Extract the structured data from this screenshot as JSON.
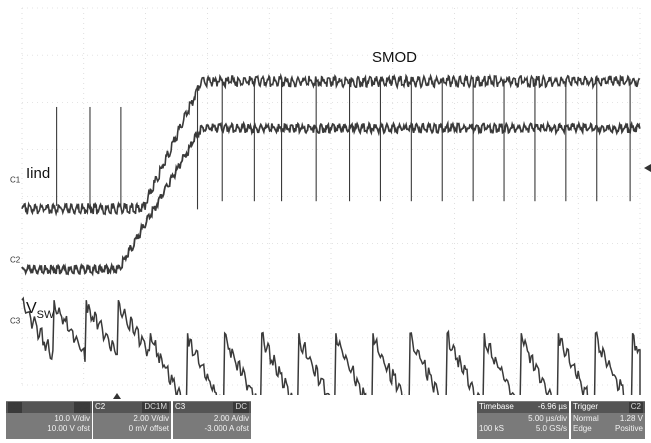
{
  "chart_data": {
    "type": "line",
    "title": "",
    "xlabel": "",
    "ylabel": "",
    "xlim": [
      0,
      50
    ],
    "ylim": [
      0,
      8
    ],
    "grid": true,
    "series": [
      {
        "name": "SMOD",
        "x": [
          0,
          9.8,
          14.5,
          50
        ],
        "values": [
          3.8,
          3.8,
          6.5,
          6.5
        ],
        "spikes_at": [
          2.8,
          5.5,
          8.0,
          14.2,
          16.2,
          18.8,
          21.0,
          23.8,
          26.5,
          29.0,
          31.5,
          34.0,
          36.5,
          39.0,
          41.5,
          44.0,
          46.5,
          49.2
        ]
      },
      {
        "name": "Iind",
        "x": [
          0,
          7.8,
          14.5,
          50
        ],
        "values": [
          2.5,
          2.5,
          5.5,
          5.5
        ]
      },
      {
        "name": "VSW",
        "period_before": 2.6,
        "period_after": 3.0,
        "switch_at": 9.8
      }
    ]
  },
  "labels": {
    "smod": "SMOD",
    "iind": "Iind",
    "vsw_main": "V",
    "vsw_sub": "SW"
  },
  "channel_markers": [
    "C1",
    "C2",
    "C3"
  ],
  "status": {
    "ch1": {
      "l1": "10.0 V/div",
      "l2": "10.00 V ofst"
    },
    "ch2": {
      "name": "C2",
      "coupling": "DC1M",
      "l1": "2.00 V/div",
      "l2": "0 mV offset"
    },
    "ch3": {
      "name": "C3",
      "coupling": "DC",
      "l1": "2.00 A/div",
      "l2": "-3.000 A ofst"
    },
    "timebase": {
      "title": "Timebase",
      "delay": "-6.96 µs",
      "l1": "5.00 µs/div",
      "l2a": "100 kS",
      "l2b": "5.0 GS/s"
    },
    "trigger": {
      "title": "Trigger",
      "chan": "C2",
      "l1a": "Normal",
      "l1b": "1.28 V",
      "l2a": "Edge",
      "l2b": "Positive"
    }
  },
  "colors": {
    "trace": "#3a3a3a",
    "grid": "#c8c8c8",
    "panel": "#7a7a7a"
  }
}
